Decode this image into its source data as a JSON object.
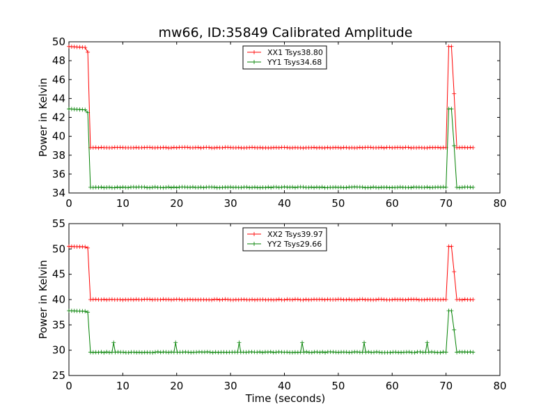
{
  "chart_data": [
    {
      "type": "line",
      "title": "mw66, ID:35849 Calibrated Amplitude",
      "xlabel": "",
      "ylabel": "Power in Kelvin",
      "xlim": [
        0,
        80
      ],
      "ylim": [
        34,
        50
      ],
      "xticks": [
        "0",
        "10",
        "20",
        "30",
        "40",
        "50",
        "60",
        "70",
        "80"
      ],
      "yticks": [
        "34",
        "36",
        "38",
        "40",
        "42",
        "44",
        "46",
        "48",
        "50"
      ],
      "grid": false,
      "legend": "top-center",
      "series": [
        {
          "name": "XX1 Tsys38.80",
          "color": "#ff0000",
          "x": [
            0,
            3.0,
            3.5,
            4.0,
            70.0,
            70.5,
            71.0,
            71.5,
            72.0,
            75
          ],
          "y": [
            49.5,
            49.4,
            48.9,
            38.8,
            38.8,
            49.5,
            49.5,
            44.5,
            38.8,
            38.8
          ]
        },
        {
          "name": "YY1 Tsys34.68",
          "color": "#008000",
          "x": [
            0,
            3.0,
            3.5,
            4.0,
            70.0,
            70.5,
            71.0,
            71.5,
            72.0,
            75
          ],
          "y": [
            42.9,
            42.8,
            42.5,
            34.6,
            34.6,
            42.9,
            42.9,
            39.0,
            34.6,
            34.6
          ]
        }
      ]
    },
    {
      "type": "line",
      "title": "",
      "xlabel": "Time (seconds)",
      "ylabel": "Power in Kelvin",
      "xlim": [
        0,
        80
      ],
      "ylim": [
        25,
        55
      ],
      "xticks": [
        "0",
        "10",
        "20",
        "30",
        "40",
        "50",
        "60",
        "70",
        "80"
      ],
      "yticks": [
        "25",
        "30",
        "35",
        "40",
        "45",
        "50",
        "55"
      ],
      "grid": false,
      "legend": "top-center",
      "series": [
        {
          "name": "XX2 Tsys39.97",
          "color": "#ff0000",
          "x": [
            0,
            3.0,
            3.5,
            4.0,
            70.0,
            70.5,
            71.0,
            71.5,
            72.0,
            75
          ],
          "y": [
            50.5,
            50.4,
            50.2,
            40.0,
            40.0,
            50.5,
            50.5,
            45.5,
            40.0,
            40.0
          ]
        },
        {
          "name": "YY2 Tsys29.66",
          "color": "#008000",
          "x": [
            0,
            3.0,
            3.5,
            4.0,
            8.0,
            8.3,
            8.6,
            19.5,
            19.8,
            20.1,
            31.3,
            31.6,
            31.9,
            43.0,
            43.3,
            43.6,
            54.5,
            54.8,
            55.1,
            66.2,
            66.5,
            66.8,
            70.0,
            70.5,
            71.0,
            71.5,
            72.0,
            75
          ],
          "y": [
            37.8,
            37.7,
            37.5,
            29.6,
            29.6,
            31.5,
            29.6,
            29.6,
            31.5,
            29.6,
            29.6,
            31.5,
            29.6,
            29.6,
            31.5,
            29.6,
            29.6,
            31.5,
            29.6,
            29.6,
            31.5,
            29.6,
            29.6,
            37.8,
            37.8,
            34.0,
            29.6,
            29.6
          ]
        }
      ]
    }
  ]
}
